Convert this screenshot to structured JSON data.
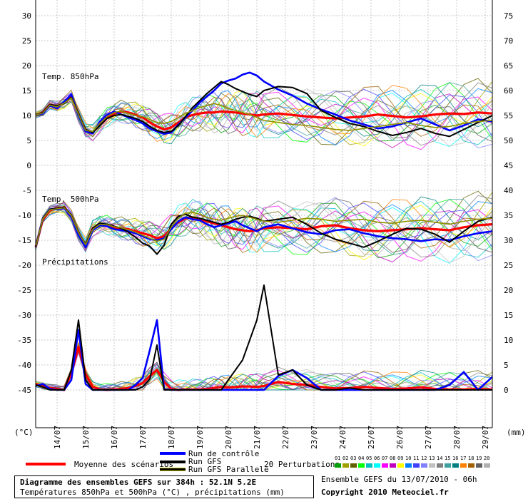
{
  "chart_data": {
    "type": "line",
    "left_unit": "(°C)",
    "right_unit": "(mm)",
    "left_axis_ticks": [
      30,
      25,
      20,
      15,
      10,
      5,
      0,
      -5,
      -10,
      -15,
      -20,
      -25,
      -30,
      -35,
      -40,
      -45
    ],
    "right_axis_ticks": [
      75,
      70,
      65,
      60,
      55,
      50,
      45,
      40,
      35,
      30,
      25,
      20,
      15,
      10,
      5,
      0
    ],
    "left_range": [
      -45,
      30
    ],
    "right_range": [
      0,
      75
    ],
    "x_ticks": [
      "14/07",
      "15/07",
      "16/07",
      "17/07",
      "18/07",
      "19/07",
      "20/07",
      "21/07",
      "22/07",
      "23/07",
      "24/07",
      "25/07",
      "26/07",
      "27/07",
      "28/07",
      "29/07"
    ],
    "panel_labels": [
      "Temp. 850hPa",
      "Temp. 500hPa",
      "Précipitations"
    ],
    "steps_hours": [
      0,
      6,
      12,
      18,
      24,
      30,
      36,
      42,
      48,
      54,
      60,
      66,
      72,
      78,
      84,
      90,
      96,
      102,
      108,
      114,
      120,
      126,
      132,
      138,
      144,
      150,
      156,
      162,
      168,
      174,
      180,
      186,
      192,
      204,
      216,
      228,
      240,
      252,
      264,
      276,
      288,
      300,
      312,
      324,
      336,
      348,
      360,
      372,
      384
    ],
    "series": [
      {
        "name": "Moyenne des scénarios",
        "panel": "t850",
        "color": "#ff0000",
        "values": [
          10.1,
          10.6,
          12.2,
          11.8,
          12.6,
          13.8,
          10.2,
          7.1,
          6.6,
          8.2,
          9.6,
          10.4,
          10.8,
          10.6,
          10.1,
          9.6,
          8.6,
          7.8,
          7.2,
          7.6,
          8.6,
          9.6,
          10.1,
          10.4,
          10.6,
          10.6,
          10.8,
          10.7,
          10.6,
          10.4,
          10.2,
          10.0,
          10.2,
          10.4,
          10.1,
          9.8,
          9.6,
          9.4,
          9.6,
          9.8,
          10.2,
          9.9,
          9.6,
          9.8,
          10.2,
          10.4,
          10.3,
          10.6,
          10.4
        ]
      },
      {
        "name": "Run de contrôle",
        "panel": "t850",
        "color": "#0000ff",
        "values": [
          10.1,
          10.4,
          12.0,
          11.4,
          12.8,
          14.2,
          10.0,
          6.8,
          6.4,
          8.8,
          10.1,
          10.8,
          10.2,
          9.6,
          9.1,
          8.4,
          7.4,
          6.8,
          6.3,
          6.6,
          8.2,
          9.6,
          11.0,
          12.6,
          13.8,
          15.0,
          16.4,
          17.0,
          17.4,
          18.2,
          18.6,
          18.0,
          16.8,
          15.2,
          14.0,
          12.4,
          11.2,
          10.2,
          9.0,
          8.2,
          7.4,
          7.8,
          8.6,
          9.4,
          8.2,
          7.0,
          8.0,
          9.2,
          8.8
        ]
      },
      {
        "name": "Run GFS",
        "panel": "t850",
        "color": "#000000",
        "values": [
          10.1,
          10.6,
          12.2,
          11.9,
          12.4,
          13.6,
          10.4,
          7.2,
          6.6,
          8.0,
          9.4,
          10.0,
          10.2,
          9.8,
          9.4,
          8.8,
          7.8,
          7.0,
          6.6,
          6.8,
          8.0,
          9.8,
          11.6,
          13.0,
          14.4,
          15.6,
          16.8,
          16.2,
          15.4,
          14.8,
          14.2,
          13.8,
          15.0,
          15.8,
          15.6,
          14.4,
          11.0,
          9.6,
          8.4,
          7.8,
          6.8,
          6.0,
          6.6,
          7.4,
          6.4,
          5.8,
          7.2,
          8.6,
          10.0
        ]
      },
      {
        "name": "Run GFS Parallele",
        "panel": "t850",
        "color": "#909000",
        "values": [
          10.1,
          10.5,
          12.1,
          11.7,
          12.5,
          13.5,
          10.2,
          7.0,
          6.8,
          8.4,
          9.8,
          10.6,
          10.9,
          10.4,
          10.0,
          9.8,
          9.2,
          8.6,
          8.4,
          8.8,
          9.6,
          10.4,
          11.0,
          11.6,
          12.0,
          12.4,
          12.0,
          11.4,
          11.0,
          10.6,
          10.2,
          9.6,
          9.0,
          8.6,
          8.2,
          8.0,
          7.6,
          7.2,
          7.0,
          7.4,
          7.8,
          8.2,
          8.6,
          8.0,
          7.6,
          7.8,
          8.4,
          8.8,
          9.0
        ]
      },
      {
        "name": "Moyenne des scénarios",
        "panel": "t500",
        "color": "#ff0000",
        "values": [
          -16.4,
          -10.8,
          -9.0,
          -8.6,
          -8.4,
          -10.2,
          -13.6,
          -16.0,
          -12.6,
          -11.8,
          -12.0,
          -12.4,
          -12.6,
          -12.8,
          -13.2,
          -13.6,
          -14.0,
          -14.6,
          -14.2,
          -12.6,
          -11.4,
          -10.6,
          -10.4,
          -10.8,
          -11.2,
          -11.6,
          -12.0,
          -12.4,
          -12.8,
          -13.0,
          -13.2,
          -13.0,
          -12.6,
          -12.4,
          -12.6,
          -12.8,
          -12.2,
          -12.0,
          -12.6,
          -13.0,
          -13.2,
          -13.0,
          -12.8,
          -12.6,
          -12.8,
          -13.0,
          -12.4,
          -12.0,
          -11.8
        ]
      },
      {
        "name": "Run de contrôle",
        "panel": "t500",
        "color": "#0000ff",
        "values": [
          -16.4,
          -10.6,
          -8.8,
          -8.8,
          -8.6,
          -10.4,
          -14.0,
          -16.4,
          -13.0,
          -12.0,
          -12.2,
          -12.8,
          -13.0,
          -13.2,
          -13.6,
          -14.2,
          -14.8,
          -15.0,
          -14.6,
          -12.8,
          -11.2,
          -10.4,
          -10.8,
          -11.0,
          -11.8,
          -12.4,
          -12.0,
          -11.6,
          -11.2,
          -12.0,
          -12.6,
          -13.2,
          -12.4,
          -11.8,
          -12.6,
          -13.4,
          -13.8,
          -13.0,
          -12.8,
          -13.6,
          -14.2,
          -14.6,
          -14.8,
          -15.2,
          -14.8,
          -15.0,
          -14.2,
          -13.6,
          -13.2
        ]
      },
      {
        "name": "Run GFS",
        "panel": "t500",
        "color": "#000000",
        "values": [
          -16.4,
          -10.6,
          -8.8,
          -8.6,
          -8.4,
          -10.0,
          -13.4,
          -15.8,
          -12.6,
          -11.6,
          -11.8,
          -12.2,
          -12.6,
          -13.4,
          -14.4,
          -15.6,
          -16.2,
          -17.8,
          -16.0,
          -11.8,
          -10.2,
          -9.8,
          -10.4,
          -10.6,
          -11.0,
          -11.4,
          -11.8,
          -11.4,
          -10.8,
          -10.4,
          -10.2,
          -10.6,
          -11.2,
          -10.8,
          -10.4,
          -11.8,
          -13.6,
          -14.8,
          -15.6,
          -16.4,
          -15.2,
          -13.8,
          -12.6,
          -12.8,
          -13.8,
          -15.4,
          -13.2,
          -11.2,
          -10.4
        ]
      },
      {
        "name": "Run GFS Parallele",
        "panel": "t500",
        "color": "#909000",
        "values": [
          -16.4,
          -10.7,
          -8.9,
          -8.7,
          -8.5,
          -10.1,
          -13.5,
          -15.9,
          -12.8,
          -11.8,
          -11.9,
          -12.3,
          -12.5,
          -12.9,
          -13.4,
          -14.0,
          -14.6,
          -15.2,
          -14.8,
          -12.4,
          -10.6,
          -9.6,
          -9.4,
          -9.8,
          -10.4,
          -10.8,
          -11.0,
          -10.6,
          -10.2,
          -10.0,
          -10.4,
          -10.8,
          -11.2,
          -11.4,
          -11.0,
          -10.6,
          -10.8,
          -11.2,
          -11.0,
          -10.8,
          -11.4,
          -11.6,
          -11.2,
          -11.0,
          -11.4,
          -11.8,
          -11.2,
          -10.8,
          -10.6
        ]
      },
      {
        "name": "Moyenne des scénarios",
        "panel": "precip",
        "color": "#ff0000",
        "values": [
          1.2,
          0.8,
          0.4,
          0.2,
          0.0,
          3.4,
          8.6,
          3.2,
          0.6,
          0.1,
          0.0,
          0.1,
          0.2,
          0.4,
          0.8,
          1.4,
          2.8,
          4.0,
          1.6,
          0.2,
          0.0,
          0.1,
          0.1,
          0.1,
          0.2,
          0.4,
          0.6,
          0.5,
          0.6,
          0.7,
          0.7,
          0.6,
          0.8,
          1.6,
          1.2,
          1.0,
          0.6,
          0.3,
          0.4,
          0.6,
          0.4,
          0.2,
          0.3,
          0.5,
          0.2,
          0.1,
          0.1,
          0.2,
          0.1
        ]
      },
      {
        "name": "Run de contrôle",
        "panel": "precip",
        "color": "#0000ff",
        "values": [
          0.8,
          1.2,
          0.2,
          0.0,
          0.0,
          2.0,
          12.0,
          1.2,
          0.0,
          0.0,
          0.0,
          0.0,
          0.0,
          0.0,
          1.0,
          2.4,
          8.0,
          14.0,
          0.2,
          0.0,
          0.0,
          0.0,
          0.0,
          0.0,
          0.0,
          0.0,
          0.0,
          0.0,
          0.0,
          0.0,
          0.0,
          0.0,
          0.0,
          2.8,
          4.0,
          2.4,
          0.0,
          0.0,
          0.0,
          0.0,
          0.0,
          0.0,
          0.0,
          0.0,
          0.0,
          1.0,
          3.6,
          0.0,
          2.6
        ]
      },
      {
        "name": "Run GFS",
        "panel": "precip",
        "color": "#000000",
        "values": [
          1.0,
          0.6,
          0.0,
          0.0,
          0.0,
          4.0,
          14.0,
          2.0,
          0.0,
          0.0,
          0.0,
          0.0,
          0.0,
          0.0,
          0.0,
          0.6,
          2.2,
          9.0,
          0.0,
          0.0,
          0.0,
          0.0,
          0.0,
          0.0,
          0.0,
          0.0,
          0.0,
          2.0,
          4.0,
          6.0,
          10.0,
          14.0,
          21.0,
          3.0,
          4.0,
          1.0,
          0.0,
          0.0,
          0.4,
          0.0,
          0.0,
          0.0,
          0.0,
          0.0,
          0.0,
          0.0,
          0.0,
          0.0,
          0.0
        ]
      }
    ]
  },
  "legend": {
    "mean_label": "Moyenne des scénarios",
    "control_label": "Run de contrôle",
    "gfs_label": "Run GFS",
    "gfs_para_label": "Run GFS Parallele",
    "perturbations_label": "20 Perturbations",
    "perturbation_numbers": [
      "01",
      "02",
      "03",
      "04",
      "05",
      "06",
      "07",
      "08",
      "09",
      "10",
      "11",
      "12",
      "13",
      "14",
      "15",
      "16",
      "17",
      "18",
      "19",
      "20"
    ],
    "perturbation_colors": [
      "#00a000",
      "#a0a000",
      "#606000",
      "#00ff00",
      "#00c0c0",
      "#00ffff",
      "#ff00ff",
      "#c000c0",
      "#ffff00",
      "#0080ff",
      "#4040ff",
      "#8080ff",
      "#c0c0c0",
      "#808080",
      "#40a0a0",
      "#008080",
      "#ff8000",
      "#a06000",
      "#606060",
      "#b0b0b0"
    ]
  },
  "footer": {
    "title": "Diagramme des ensembles GEFS sur 384h : 52.1N 5.2E",
    "subtitle": "Températures 850hPa et 500hPa (°C) , précipitations (mm)",
    "ensemble_info": "Ensemble GEFS du 13/07/2010 - 06h",
    "copyright": "Copyright 2010 Meteociel.fr"
  }
}
